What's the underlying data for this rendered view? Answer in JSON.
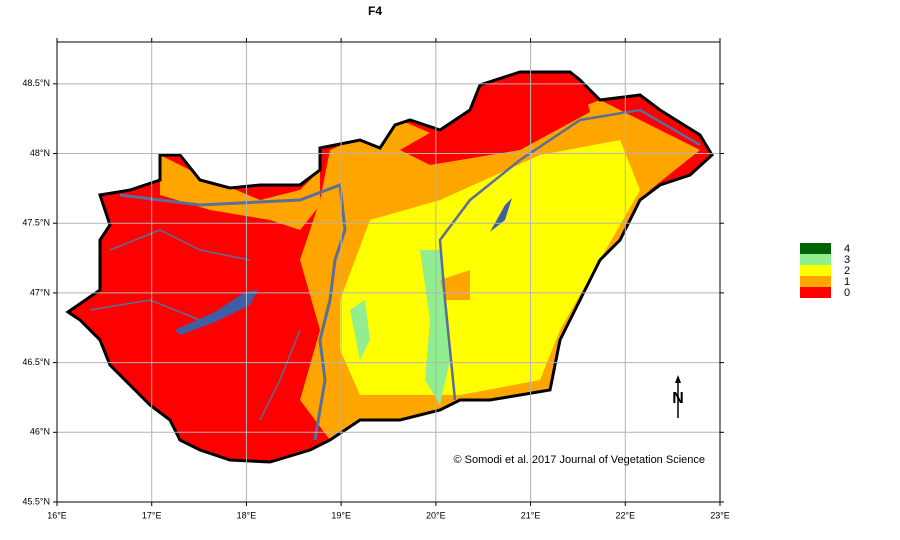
{
  "map": {
    "title": "F4",
    "xlim": [
      16,
      23
    ],
    "ylim": [
      45.5,
      48.8
    ],
    "grid": true,
    "xticks": [
      {
        "value": 16,
        "label": "16°E"
      },
      {
        "value": 17,
        "label": "17°E"
      },
      {
        "value": 18,
        "label": "18°E"
      },
      {
        "value": 19,
        "label": "19°E"
      },
      {
        "value": 20,
        "label": "20°E"
      },
      {
        "value": 21,
        "label": "21°E"
      },
      {
        "value": 22,
        "label": "22°E"
      },
      {
        "value": 23,
        "label": "23°E"
      }
    ],
    "yticks": [
      {
        "value": 45.5,
        "label": "45.5°N"
      },
      {
        "value": 46,
        "label": "46°N"
      },
      {
        "value": 46.5,
        "label": "46.5°N"
      },
      {
        "value": 47,
        "label": "47°N"
      },
      {
        "value": 47.5,
        "label": "47.5°N"
      },
      {
        "value": 48,
        "label": "48°N"
      },
      {
        "value": 48.5,
        "label": "48.5°N"
      }
    ],
    "legend": {
      "items": [
        {
          "label": "4",
          "color": "#006400"
        },
        {
          "label": "3",
          "color": "#90ee90"
        },
        {
          "label": "2",
          "color": "#ffff00"
        },
        {
          "label": "1",
          "color": "#ffa500"
        },
        {
          "label": "0",
          "color": "#ff0000"
        }
      ]
    },
    "north_label": "N",
    "credit": "© Somodi et al. 2017 Journal of Vegetation Science"
  }
}
